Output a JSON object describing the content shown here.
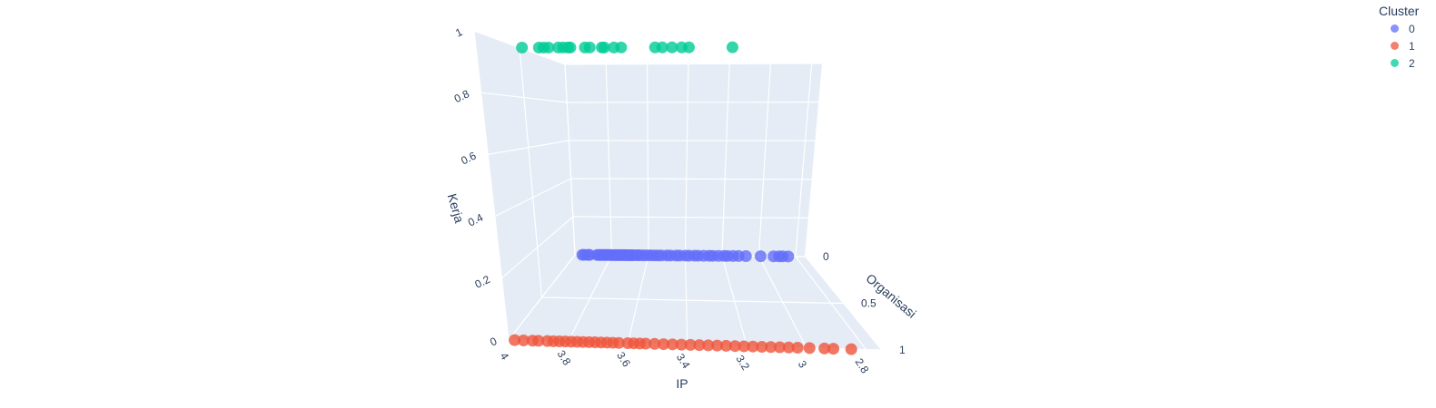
{
  "chart_data": {
    "type": "scatter",
    "title": "",
    "legend": {
      "title": "Cluster",
      "placement": "top-right"
    },
    "axes": {
      "x": {
        "label": "IP",
        "range": [
          2.75,
          4.0
        ],
        "reversed": true,
        "ticks": [
          "4",
          "3.8",
          "3.6",
          "3.4",
          "3.2",
          "3",
          "2.8"
        ]
      },
      "y": {
        "label": "Organisasi",
        "range": [
          0,
          1
        ],
        "ticks": [
          "0",
          "0.5",
          "1"
        ]
      },
      "z": {
        "label": "Kerja",
        "range": [
          0,
          1
        ],
        "ticks": [
          "0",
          "0.2",
          "0.4",
          "0.6",
          "0.8",
          "1"
        ]
      }
    },
    "grid": true,
    "series": [
      {
        "name": "0",
        "color": "#636efa",
        "y": 0,
        "z": 0,
        "x": [
          3.96,
          3.95,
          3.93,
          3.92,
          3.88,
          3.87,
          3.86,
          3.85,
          3.84,
          3.83,
          3.82,
          3.81,
          3.8,
          3.79,
          3.78,
          3.77,
          3.76,
          3.75,
          3.74,
          3.73,
          3.72,
          3.71,
          3.7,
          3.69,
          3.68,
          3.66,
          3.65,
          3.63,
          3.61,
          3.59,
          3.57,
          3.55,
          3.53,
          3.5,
          3.48,
          3.45,
          3.43,
          3.4,
          3.38,
          3.35,
          3.33,
          3.3,
          3.27,
          3.25,
          3.22,
          3.19,
          3.17,
          3.14,
          3.11,
          3.07,
          2.99,
          2.92,
          2.89,
          2.87,
          2.84
        ]
      },
      {
        "name": "1",
        "color": "#ef553b",
        "y": 1,
        "z": 0,
        "x": [
          3.98,
          3.95,
          3.92,
          3.9,
          3.87,
          3.85,
          3.83,
          3.81,
          3.79,
          3.77,
          3.75,
          3.73,
          3.71,
          3.69,
          3.67,
          3.65,
          3.63,
          3.6,
          3.58,
          3.56,
          3.54,
          3.51,
          3.48,
          3.45,
          3.42,
          3.39,
          3.36,
          3.33,
          3.3,
          3.27,
          3.24,
          3.21,
          3.18,
          3.15,
          3.12,
          3.09,
          3.06,
          3.03,
          2.99,
          2.94,
          2.91,
          2.85
        ]
      },
      {
        "name": "2",
        "color": "#00cc96",
        "y": 0.5,
        "z": 1,
        "x": [
          3.99,
          3.92,
          3.9,
          3.88,
          3.84,
          3.82,
          3.8,
          3.79,
          3.73,
          3.71,
          3.66,
          3.65,
          3.61,
          3.58,
          3.44,
          3.41,
          3.37,
          3.33,
          3.3,
          3.12
        ]
      }
    ]
  }
}
